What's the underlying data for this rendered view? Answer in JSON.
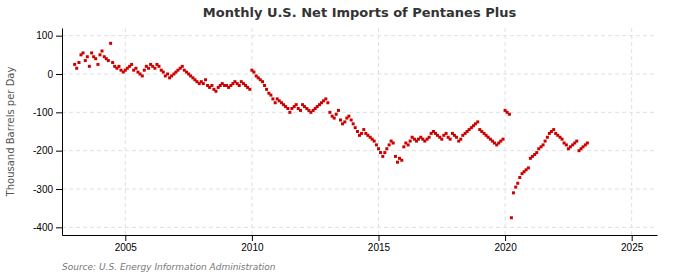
{
  "chart_data": {
    "type": "scatter",
    "title": "Monthly U.S. Net Imports of Pentanes Plus",
    "ylabel": "Thousand Barrels per Day",
    "annotations": [
      "Source: U.S. Energy Information Administration"
    ],
    "xlim": [
      2002.5,
      2026.0
    ],
    "ylim": [
      -420,
      120
    ],
    "xticks": [
      2005,
      2010,
      2015,
      2020,
      2025
    ],
    "yticks": [
      -400,
      -300,
      -200,
      -100,
      0,
      100
    ],
    "grid": true,
    "color": "#cc0000",
    "marker": "square",
    "x": [
      2003.0,
      2003.08,
      2003.17,
      2003.25,
      2003.33,
      2003.42,
      2003.5,
      2003.58,
      2003.67,
      2003.75,
      2003.83,
      2003.92,
      2004.0,
      2004.08,
      2004.17,
      2004.25,
      2004.33,
      2004.42,
      2004.5,
      2004.58,
      2004.67,
      2004.75,
      2004.83,
      2004.92,
      2005.0,
      2005.08,
      2005.17,
      2005.25,
      2005.33,
      2005.42,
      2005.5,
      2005.58,
      2005.67,
      2005.75,
      2005.83,
      2005.92,
      2006.0,
      2006.08,
      2006.17,
      2006.25,
      2006.33,
      2006.42,
      2006.5,
      2006.58,
      2006.67,
      2006.75,
      2006.83,
      2006.92,
      2007.0,
      2007.08,
      2007.17,
      2007.25,
      2007.33,
      2007.42,
      2007.5,
      2007.58,
      2007.67,
      2007.75,
      2007.83,
      2007.92,
      2008.0,
      2008.08,
      2008.17,
      2008.25,
      2008.33,
      2008.42,
      2008.5,
      2008.58,
      2008.67,
      2008.75,
      2008.83,
      2008.92,
      2009.0,
      2009.08,
      2009.17,
      2009.25,
      2009.33,
      2009.42,
      2009.5,
      2009.58,
      2009.67,
      2009.75,
      2009.83,
      2009.92,
      2010.0,
      2010.08,
      2010.17,
      2010.25,
      2010.33,
      2010.42,
      2010.5,
      2010.58,
      2010.67,
      2010.75,
      2010.83,
      2010.92,
      2011.0,
      2011.08,
      2011.17,
      2011.25,
      2011.33,
      2011.42,
      2011.5,
      2011.58,
      2011.67,
      2011.75,
      2011.83,
      2011.92,
      2012.0,
      2012.08,
      2012.17,
      2012.25,
      2012.33,
      2012.42,
      2012.5,
      2012.58,
      2012.67,
      2012.75,
      2012.83,
      2012.92,
      2013.0,
      2013.08,
      2013.17,
      2013.25,
      2013.33,
      2013.42,
      2013.5,
      2013.58,
      2013.67,
      2013.75,
      2013.83,
      2013.92,
      2014.0,
      2014.08,
      2014.17,
      2014.25,
      2014.33,
      2014.42,
      2014.5,
      2014.58,
      2014.67,
      2014.75,
      2014.83,
      2014.92,
      2015.0,
      2015.08,
      2015.17,
      2015.25,
      2015.33,
      2015.42,
      2015.5,
      2015.58,
      2015.67,
      2015.75,
      2015.83,
      2015.92,
      2016.0,
      2016.08,
      2016.17,
      2016.25,
      2016.33,
      2016.42,
      2016.5,
      2016.58,
      2016.67,
      2016.75,
      2016.83,
      2016.92,
      2017.0,
      2017.08,
      2017.17,
      2017.25,
      2017.33,
      2017.42,
      2017.5,
      2017.58,
      2017.67,
      2017.75,
      2017.83,
      2017.92,
      2018.0,
      2018.08,
      2018.17,
      2018.25,
      2018.33,
      2018.42,
      2018.5,
      2018.58,
      2018.67,
      2018.75,
      2018.83,
      2018.92,
      2019.0,
      2019.08,
      2019.17,
      2019.25,
      2019.33,
      2019.42,
      2019.5,
      2019.58,
      2019.67,
      2019.75,
      2019.83,
      2019.92,
      2020.0,
      2020.08,
      2020.17,
      2020.25,
      2020.33,
      2020.42,
      2020.5,
      2020.58,
      2020.67,
      2020.75,
      2020.83,
      2020.92,
      2021.0,
      2021.08,
      2021.17,
      2021.25,
      2021.33,
      2021.42,
      2021.5,
      2021.58,
      2021.67,
      2021.75,
      2021.83,
      2021.92,
      2022.0,
      2022.08,
      2022.17,
      2022.25,
      2022.33,
      2022.42,
      2022.5,
      2022.58,
      2022.67,
      2022.75,
      2022.83,
      2022.92,
      2023.0,
      2023.08,
      2023.17,
      2023.25
    ],
    "values": [
      25,
      15,
      30,
      50,
      55,
      35,
      45,
      20,
      55,
      45,
      40,
      25,
      50,
      60,
      45,
      40,
      35,
      80,
      30,
      20,
      15,
      20,
      10,
      5,
      10,
      15,
      20,
      25,
      10,
      15,
      5,
      0,
      -5,
      10,
      20,
      15,
      25,
      20,
      15,
      25,
      20,
      10,
      5,
      -5,
      0,
      -10,
      -5,
      0,
      5,
      10,
      15,
      20,
      10,
      5,
      0,
      -5,
      -10,
      -15,
      -20,
      -25,
      -20,
      -25,
      -15,
      -30,
      -35,
      -30,
      -40,
      -45,
      -35,
      -30,
      -25,
      -30,
      -30,
      -35,
      -30,
      -25,
      -20,
      -25,
      -30,
      -20,
      -25,
      -30,
      -35,
      -40,
      10,
      5,
      -5,
      -10,
      -15,
      -20,
      -30,
      -40,
      -50,
      -55,
      -65,
      -75,
      -65,
      -70,
      -75,
      -80,
      -85,
      -90,
      -100,
      -90,
      -85,
      -80,
      -90,
      -95,
      -80,
      -85,
      -90,
      -95,
      -100,
      -95,
      -90,
      -85,
      -80,
      -75,
      -70,
      -65,
      -75,
      -100,
      -110,
      -115,
      -105,
      -95,
      -120,
      -130,
      -125,
      -115,
      -110,
      -120,
      -130,
      -140,
      -150,
      -160,
      -155,
      -145,
      -155,
      -160,
      -165,
      -170,
      -175,
      -185,
      -195,
      -205,
      -215,
      -205,
      -195,
      -185,
      -175,
      -180,
      -215,
      -230,
      -220,
      -225,
      -190,
      -180,
      -185,
      -175,
      -165,
      -170,
      -175,
      -170,
      -165,
      -170,
      -175,
      -170,
      -165,
      -155,
      -150,
      -155,
      -160,
      -165,
      -170,
      -160,
      -155,
      -165,
      -170,
      -155,
      -160,
      -165,
      -175,
      -170,
      -160,
      -155,
      -150,
      -145,
      -140,
      -135,
      -130,
      -125,
      -145,
      -150,
      -155,
      -160,
      -165,
      -170,
      -175,
      -180,
      -185,
      -180,
      -175,
      -170,
      -95,
      -100,
      -105,
      -375,
      -310,
      -295,
      -285,
      -270,
      -260,
      -255,
      -250,
      -245,
      -220,
      -215,
      -210,
      -205,
      -195,
      -190,
      -185,
      -175,
      -165,
      -155,
      -150,
      -145,
      -155,
      -160,
      -165,
      -170,
      -180,
      -185,
      -195,
      -190,
      -185,
      -180,
      -175,
      -200,
      -195,
      -190,
      -185,
      -180
    ]
  }
}
